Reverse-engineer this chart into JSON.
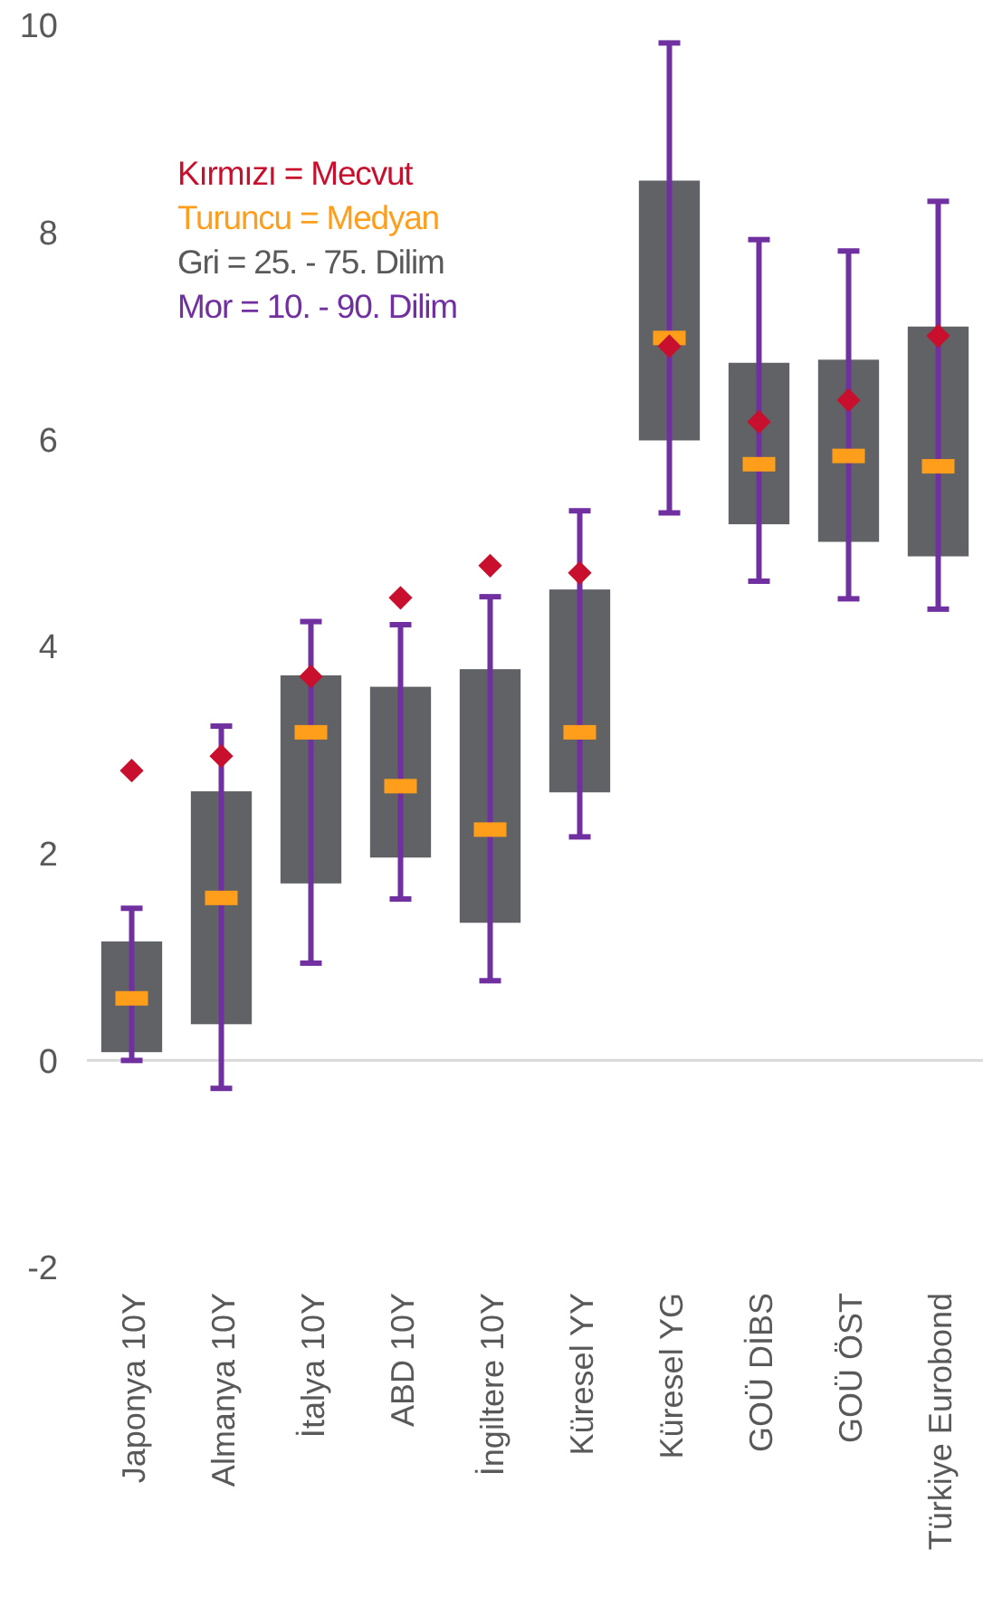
{
  "chart_data": {
    "type": "box",
    "categories": [
      "Japonya 10Y",
      "Almanya 10Y",
      "İtalya 10Y",
      "ABD 10Y",
      "İngiltere 10Y",
      "Küresel YY",
      "Küresel YG",
      "GOÜ DİBS",
      "GOÜ ÖST",
      "Türkiye Eurobond"
    ],
    "ylim": [
      -2,
      10
    ],
    "yticks": [
      -2,
      0,
      2,
      4,
      6,
      8,
      10
    ],
    "grid": false,
    "annotations": [
      "Kırmızı  = Mecvut",
      "Turuncu = Medyan",
      "Gri = 25. - 75. Dilim",
      "Mor = 10. - 90. Dilim"
    ],
    "ref_lines": [
      {
        "axis": "y",
        "value": 0,
        "color": "#d9d9d9"
      }
    ],
    "series": [
      {
        "type": "box",
        "color": "#606266",
        "boxes": [
          {
            "low": 0.0,
            "q1": 0.08,
            "median": 0.6,
            "q3": 1.15,
            "high": 1.47
          },
          {
            "low": -0.27,
            "q1": 0.35,
            "median": 1.57,
            "q3": 2.6,
            "high": 3.23
          },
          {
            "low": 0.94,
            "q1": 1.71,
            "median": 3.17,
            "q3": 3.72,
            "high": 4.24
          },
          {
            "low": 1.56,
            "q1": 1.96,
            "median": 2.65,
            "q3": 3.61,
            "high": 4.21
          },
          {
            "low": 0.77,
            "q1": 1.33,
            "median": 2.23,
            "q3": 3.78,
            "high": 4.48
          },
          {
            "low": 2.16,
            "q1": 2.59,
            "median": 3.17,
            "q3": 4.55,
            "high": 5.31
          },
          {
            "low": 5.29,
            "q1": 5.99,
            "median": 6.98,
            "q3": 8.5,
            "high": 9.83
          },
          {
            "low": 4.63,
            "q1": 5.18,
            "median": 5.76,
            "q3": 6.74,
            "high": 7.93
          },
          {
            "low": 4.46,
            "q1": 5.01,
            "median": 5.84,
            "q3": 6.77,
            "high": 7.82
          },
          {
            "low": 4.36,
            "q1": 4.87,
            "median": 5.74,
            "q3": 7.09,
            "high": 8.3
          }
        ]
      },
      {
        "type": "scatter",
        "color": "#c8102e",
        "marker": "diamond",
        "values": [
          2.8,
          2.94,
          3.71,
          4.47,
          4.78,
          4.71,
          6.9,
          6.17,
          6.38,
          7.0
        ]
      }
    ]
  }
}
